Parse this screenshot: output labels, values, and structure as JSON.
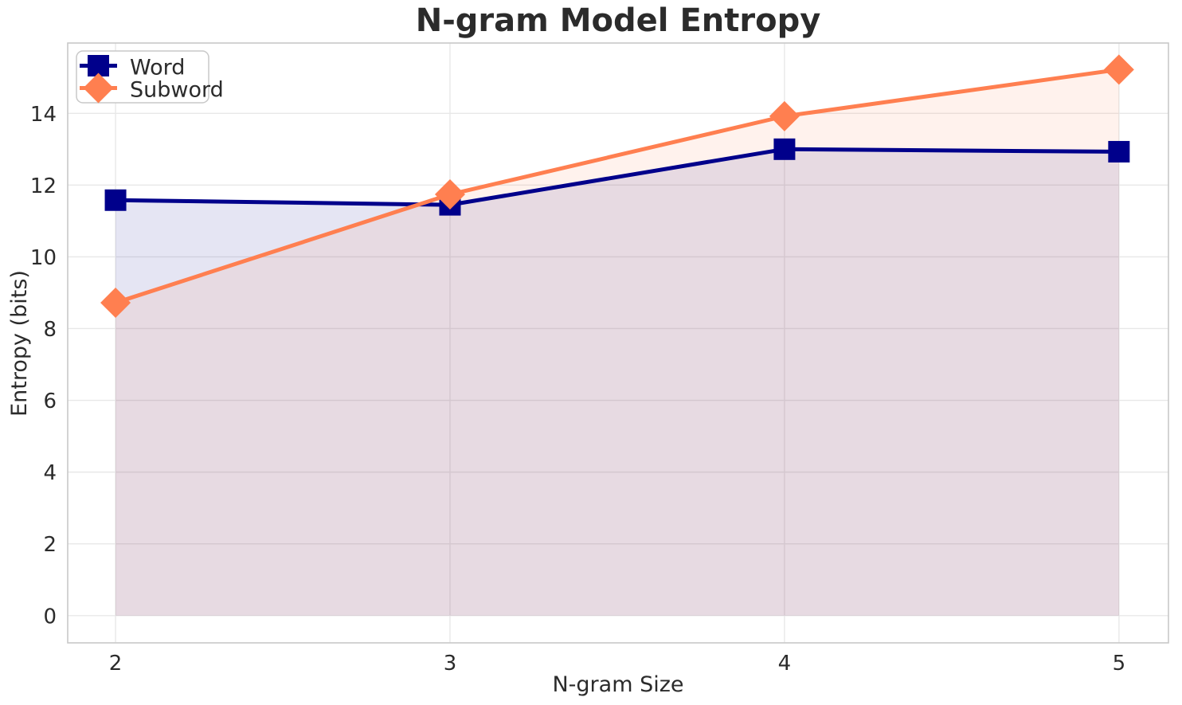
{
  "chart_data": {
    "type": "line",
    "title": "N-gram Model Entropy",
    "xlabel": "N-gram Size",
    "ylabel": "Entropy (bits)",
    "x": [
      2,
      3,
      4,
      5
    ],
    "series": [
      {
        "name": "Word",
        "marker": "square",
        "color": "#00008b",
        "values": [
          11.58,
          11.45,
          13.0,
          12.93
        ]
      },
      {
        "name": "Subword",
        "marker": "diamond",
        "color": "#ff7f50",
        "values": [
          8.72,
          11.74,
          13.92,
          15.22
        ]
      }
    ],
    "fill_to_zero": true,
    "fill_opacity": 0.1,
    "x_ticks": [
      2,
      3,
      4,
      5
    ],
    "y_ticks": [
      0,
      2,
      4,
      6,
      8,
      10,
      12,
      14
    ],
    "xlim": [
      1.857,
      5.148
    ],
    "ylim": [
      -0.76,
      15.96
    ],
    "grid": true,
    "legend_position": "upper left",
    "colors": {
      "grid": "#e8e8e8",
      "spine": "#c8c8c8",
      "text": "#2b2b2b",
      "background": "#ffffff"
    }
  }
}
